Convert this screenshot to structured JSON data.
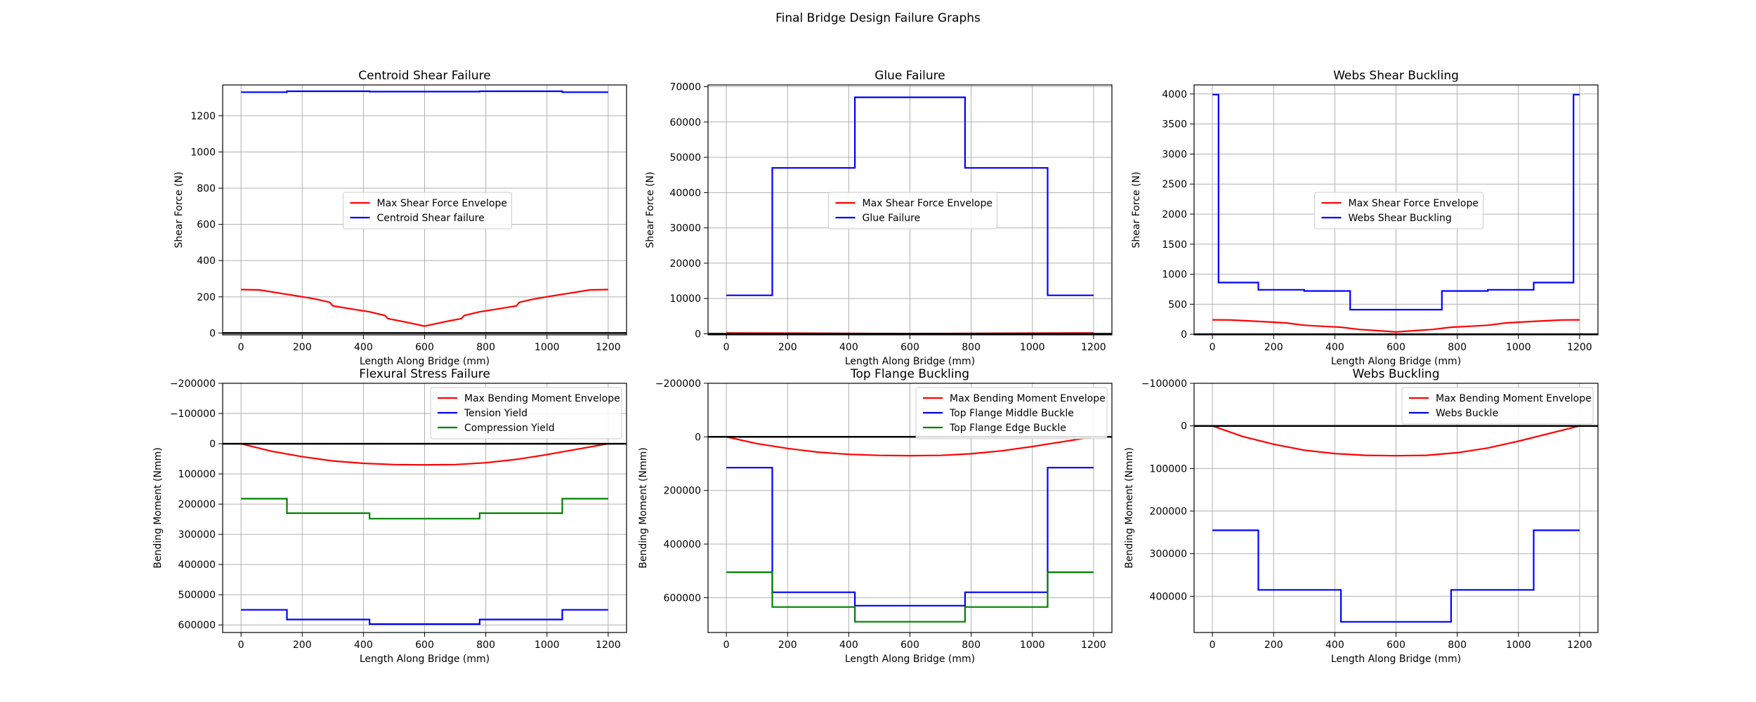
{
  "figure": {
    "suptitle": "Final Bridge Design Failure Graphs"
  },
  "colors": {
    "envelope": "#ff0000",
    "capacity": "#0000ff",
    "secondary": "#008000",
    "axis_line": "#000000",
    "grid": "#b0b0b0"
  },
  "chart_data": [
    {
      "type": "line",
      "title": "Centroid Shear Failure",
      "xlabel": "Length Along Bridge (mm)",
      "ylabel": "Shear Force (N)",
      "xlim": [
        -60,
        1260
      ],
      "ylim": [
        -10,
        1370
      ],
      "y_inverted": false,
      "grid": true,
      "legend_position": "center",
      "x_ticks": [
        0,
        200,
        400,
        600,
        800,
        1000,
        1200
      ],
      "x_tick_labels": [
        "0",
        "200",
        "400",
        "600",
        "800",
        "1000",
        "1200"
      ],
      "y_ticks": [
        0,
        200,
        400,
        600,
        800,
        1000,
        1200
      ],
      "y_tick_labels": [
        "0",
        "200",
        "400",
        "600",
        "800",
        "1000",
        "1200"
      ],
      "series": [
        {
          "name": "Max Shear Force Envelope",
          "color": "envelope",
          "x": [
            0,
            60,
            120,
            180,
            240,
            290,
            300,
            360,
            420,
            470,
            480,
            540,
            600,
            660,
            720,
            730,
            780,
            840,
            900,
            910,
            960,
            1020,
            1080,
            1140,
            1200
          ],
          "y": [
            240,
            238,
            222,
            206,
            189,
            170,
            150,
            133,
            117,
            97,
            80,
            60,
            38,
            60,
            80,
            97,
            117,
            133,
            150,
            170,
            189,
            206,
            222,
            238,
            240
          ]
        },
        {
          "name": "Centroid Shear failure",
          "color": "capacity",
          "x": [
            0,
            150,
            150,
            420,
            420,
            780,
            780,
            1050,
            1050,
            1200
          ],
          "y": [
            1330,
            1330,
            1335,
            1335,
            1333,
            1333,
            1335,
            1335,
            1330,
            1330
          ]
        },
        {
          "color": "axis_line",
          "x": [
            -60,
            1260
          ],
          "y": [
            0,
            0
          ]
        }
      ]
    },
    {
      "type": "line",
      "title": "Glue Failure",
      "xlabel": "Length Along Bridge (mm)",
      "ylabel": "Shear Force (N)",
      "xlim": [
        -60,
        1260
      ],
      "ylim": [
        -300,
        70500
      ],
      "y_inverted": false,
      "grid": true,
      "legend_position": "center",
      "x_ticks": [
        0,
        200,
        400,
        600,
        800,
        1000,
        1200
      ],
      "x_tick_labels": [
        "0",
        "200",
        "400",
        "600",
        "800",
        "1000",
        "1200"
      ],
      "y_ticks": [
        0,
        10000,
        20000,
        30000,
        40000,
        50000,
        60000,
        70000
      ],
      "y_tick_labels": [
        "0",
        "10000",
        "20000",
        "30000",
        "40000",
        "50000",
        "60000",
        "70000"
      ],
      "series": [
        {
          "name": "Max Shear Force Envelope",
          "color": "envelope",
          "x": [
            0,
            300,
            600,
            900,
            1200
          ],
          "y": [
            240,
            150,
            40,
            150,
            240
          ]
        },
        {
          "name": "Glue Failure",
          "color": "capacity",
          "x": [
            0,
            150,
            150,
            420,
            420,
            780,
            780,
            1050,
            1050,
            1200
          ],
          "y": [
            10900,
            10900,
            47000,
            47000,
            67000,
            67000,
            47000,
            47000,
            10900,
            10900
          ]
        },
        {
          "color": "axis_line",
          "x": [
            -60,
            1260
          ],
          "y": [
            0,
            0
          ]
        }
      ]
    },
    {
      "type": "line",
      "title": "Webs Shear Buckling",
      "xlabel": "Length Along Bridge (mm)",
      "ylabel": "Shear Force (N)",
      "xlim": [
        -60,
        1260
      ],
      "ylim": [
        -10,
        4150
      ],
      "y_inverted": false,
      "grid": true,
      "legend_position": "center",
      "x_ticks": [
        0,
        200,
        400,
        600,
        800,
        1000,
        1200
      ],
      "x_tick_labels": [
        "0",
        "200",
        "400",
        "600",
        "800",
        "1000",
        "1200"
      ],
      "y_ticks": [
        0,
        500,
        1000,
        1500,
        2000,
        2500,
        3000,
        3500,
        4000
      ],
      "y_tick_labels": [
        "0",
        "500",
        "1000",
        "1500",
        "2000",
        "2500",
        "3000",
        "3500",
        "4000"
      ],
      "series": [
        {
          "name": "Max Shear Force Envelope",
          "color": "envelope",
          "x": [
            0,
            60,
            120,
            180,
            240,
            300,
            360,
            420,
            480,
            540,
            600,
            660,
            720,
            780,
            840,
            900,
            960,
            1020,
            1080,
            1140,
            1200
          ],
          "y": [
            240,
            238,
            222,
            206,
            189,
            150,
            133,
            117,
            80,
            60,
            38,
            60,
            80,
            117,
            133,
            150,
            189,
            206,
            222,
            238,
            240
          ]
        },
        {
          "name": "Webs Shear Buckling",
          "color": "capacity",
          "x": [
            0,
            20,
            20,
            150,
            150,
            300,
            300,
            450,
            450,
            750,
            750,
            900,
            900,
            1050,
            1050,
            1180,
            1180,
            1200
          ],
          "y": [
            3990,
            3990,
            860,
            860,
            740,
            740,
            720,
            720,
            410,
            410,
            720,
            720,
            740,
            740,
            860,
            860,
            3990,
            3990
          ]
        },
        {
          "color": "axis_line",
          "x": [
            -60,
            1260
          ],
          "y": [
            0,
            0
          ]
        }
      ]
    },
    {
      "type": "line",
      "title": "Flexural Stress Failure",
      "xlabel": "Length Along Bridge (mm)",
      "ylabel": "Bending Moment (Nmm)",
      "xlim": [
        -60,
        1260
      ],
      "ylim": [
        -200000,
        625000
      ],
      "y_inverted": true,
      "grid": true,
      "legend_position": "upper right",
      "x_ticks": [
        0,
        200,
        400,
        600,
        800,
        1000,
        1200
      ],
      "x_tick_labels": [
        "0",
        "200",
        "400",
        "600",
        "800",
        "1000",
        "1200"
      ],
      "y_ticks": [
        -200000,
        -100000,
        0,
        100000,
        200000,
        300000,
        400000,
        500000,
        600000
      ],
      "y_tick_labels": [
        "−200000",
        "−100000",
        "0",
        "100000",
        "200000",
        "300000",
        "400000",
        "500000",
        "600000"
      ],
      "series": [
        {
          "name": "Max Bending Moment Envelope",
          "color": "envelope",
          "x": [
            0,
            100,
            200,
            300,
            400,
            500,
            600,
            700,
            800,
            900,
            1000,
            1100,
            1200
          ],
          "y": [
            0,
            25000,
            43000,
            57000,
            65000,
            69000,
            70000,
            69000,
            63000,
            52000,
            36000,
            18000,
            0
          ]
        },
        {
          "name": "Tension Yield",
          "color": "capacity",
          "x": [
            0,
            150,
            150,
            420,
            420,
            780,
            780,
            1050,
            1050,
            1200
          ],
          "y": [
            550000,
            550000,
            582000,
            582000,
            597000,
            597000,
            582000,
            582000,
            550000,
            550000
          ]
        },
        {
          "name": "Compression Yield",
          "color": "secondary",
          "x": [
            0,
            150,
            150,
            420,
            420,
            780,
            780,
            1050,
            1050,
            1200
          ],
          "y": [
            182000,
            182000,
            230000,
            230000,
            248000,
            248000,
            230000,
            230000,
            182000,
            182000
          ]
        },
        {
          "color": "axis_line",
          "x": [
            -60,
            1260
          ],
          "y": [
            0,
            0
          ]
        }
      ]
    },
    {
      "type": "line",
      "title": "Top Flange Buckling",
      "xlabel": "Length Along Bridge (mm)",
      "ylabel": "Bending Moment (Nmm)",
      "xlim": [
        -60,
        1260
      ],
      "ylim": [
        -200000,
        730000
      ],
      "y_inverted": true,
      "grid": true,
      "legend_position": "upper right",
      "x_ticks": [
        0,
        200,
        400,
        600,
        800,
        1000,
        1200
      ],
      "x_tick_labels": [
        "0",
        "200",
        "400",
        "600",
        "800",
        "1000",
        "1200"
      ],
      "y_ticks": [
        -200000,
        0,
        200000,
        400000,
        600000
      ],
      "y_tick_labels": [
        "−200000",
        "0",
        "200000",
        "400000",
        "600000"
      ],
      "series": [
        {
          "name": "Max Bending Moment Envelope",
          "color": "envelope",
          "x": [
            0,
            100,
            200,
            300,
            400,
            500,
            600,
            700,
            800,
            900,
            1000,
            1100,
            1200
          ],
          "y": [
            0,
            25000,
            43000,
            57000,
            65000,
            69000,
            70000,
            69000,
            63000,
            52000,
            36000,
            18000,
            0
          ]
        },
        {
          "name": "Top Flange Middle Buckle",
          "color": "capacity",
          "x": [
            0,
            150,
            150,
            420,
            420,
            780,
            780,
            1050,
            1050,
            1200
          ],
          "y": [
            115000,
            115000,
            580000,
            580000,
            630000,
            630000,
            580000,
            580000,
            115000,
            115000
          ]
        },
        {
          "name": "Top Flange Edge Buckle",
          "color": "secondary",
          "x": [
            0,
            150,
            150,
            420,
            420,
            780,
            780,
            1050,
            1050,
            1200
          ],
          "y": [
            505000,
            505000,
            635000,
            635000,
            690000,
            690000,
            635000,
            635000,
            505000,
            505000
          ]
        },
        {
          "color": "axis_line",
          "x": [
            -60,
            1260
          ],
          "y": [
            0,
            0
          ]
        }
      ]
    },
    {
      "type": "line",
      "title": "Webs Buckling",
      "xlabel": "Length Along Bridge (mm)",
      "ylabel": "Bending Moment (Nmm)",
      "xlim": [
        -60,
        1260
      ],
      "ylim": [
        -100000,
        485000
      ],
      "y_inverted": true,
      "grid": true,
      "legend_position": "upper right",
      "x_ticks": [
        0,
        200,
        400,
        600,
        800,
        1000,
        1200
      ],
      "x_tick_labels": [
        "0",
        "200",
        "400",
        "600",
        "800",
        "1000",
        "1200"
      ],
      "y_ticks": [
        -100000,
        0,
        100000,
        200000,
        300000,
        400000
      ],
      "y_tick_labels": [
        "−100000",
        "0",
        "100000",
        "200000",
        "300000",
        "400000"
      ],
      "series": [
        {
          "name": "Max Bending Moment Envelope",
          "color": "envelope",
          "x": [
            0,
            100,
            200,
            300,
            400,
            500,
            600,
            700,
            800,
            900,
            1000,
            1100,
            1200
          ],
          "y": [
            0,
            25000,
            43000,
            57000,
            65000,
            69000,
            70000,
            69000,
            63000,
            52000,
            36000,
            18000,
            0
          ]
        },
        {
          "name": "Webs Buckle",
          "color": "capacity",
          "x": [
            0,
            150,
            150,
            420,
            420,
            780,
            780,
            1050,
            1050,
            1200
          ],
          "y": [
            245000,
            245000,
            385000,
            385000,
            460000,
            460000,
            385000,
            385000,
            245000,
            245000
          ]
        },
        {
          "color": "axis_line",
          "x": [
            -60,
            1260
          ],
          "y": [
            0,
            0
          ]
        }
      ]
    }
  ]
}
